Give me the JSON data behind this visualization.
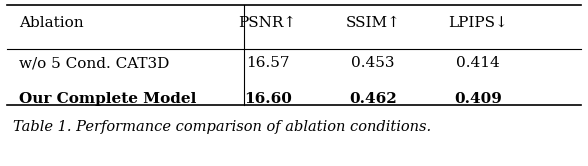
{
  "title": "Table 1. Performance comparison of ablation conditions.",
  "col_headers": [
    "Ablation",
    "PSNR↑",
    "SSIM↑",
    "LPIPS↓"
  ],
  "rows": [
    [
      "w/o 5 Cond. CAT3D",
      "16.57",
      "0.453",
      "0.414"
    ],
    [
      "Our Complete Model",
      "16.60",
      "0.462",
      "0.409"
    ]
  ],
  "bold_rows": [
    1
  ],
  "bg_color": "#ffffff",
  "text_color": "#000000",
  "figsize": [
    5.88,
    1.66
  ],
  "dpi": 100,
  "header_fontsize": 11,
  "body_fontsize": 11,
  "caption_fontsize": 10.5
}
